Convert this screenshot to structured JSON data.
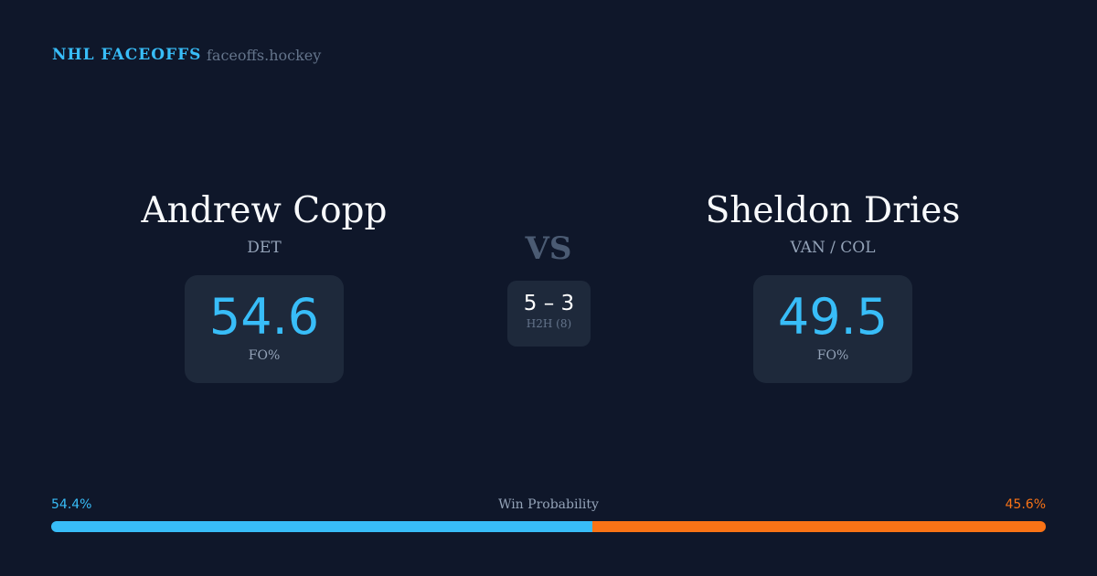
{
  "header": {
    "brand": "NHL FACEOFFS",
    "site": "faceoffs.hockey"
  },
  "left": {
    "name": "Andrew Copp",
    "team": "DET",
    "value": "54.6",
    "label": "FO%"
  },
  "right": {
    "name": "Sheldon Dries",
    "team": "VAN / COL",
    "value": "49.5",
    "label": "FO%"
  },
  "versus": {
    "label": "VS",
    "score": "5 – 3",
    "h2h": "H2H (8)"
  },
  "win_probability": {
    "label": "Win Probability",
    "left_text": "54.4%",
    "right_text": "45.6%",
    "left_pct": 54.4,
    "right_pct": 45.6,
    "left_color": "#38bdf8",
    "right_color": "#f97316"
  }
}
